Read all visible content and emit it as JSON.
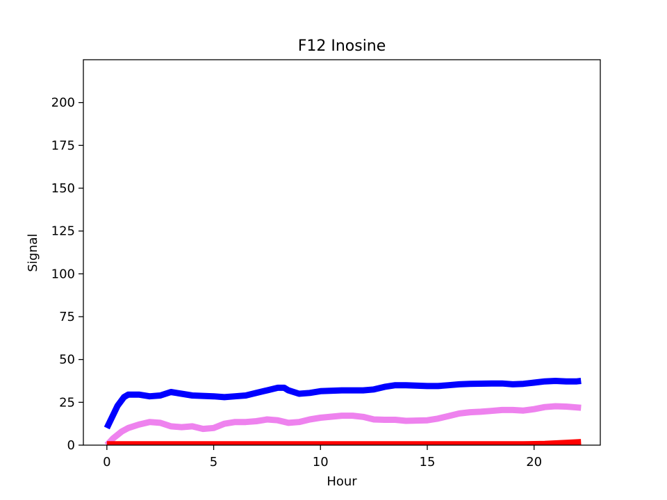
{
  "chart_data": {
    "type": "line",
    "title": "F12 Inosine",
    "xlabel": "Hour",
    "ylabel": "Signal",
    "xlim": [
      -1.1,
      23.1
    ],
    "ylim": [
      0,
      225
    ],
    "xticks": [
      0,
      5,
      10,
      15,
      20
    ],
    "yticks": [
      0,
      25,
      50,
      75,
      100,
      125,
      150,
      175,
      200
    ],
    "grid": false,
    "legend": "none",
    "series": [
      {
        "color": "#0000ff",
        "x": [
          0,
          0.5,
          0.8,
          1.0,
          1.5,
          2.0,
          2.5,
          3.0,
          3.5,
          4.0,
          5.0,
          5.5,
          6.0,
          6.5,
          7.0,
          7.5,
          8.0,
          8.3,
          8.5,
          9.0,
          9.5,
          10.0,
          11.0,
          12.0,
          12.5,
          13.0,
          13.5,
          14.0,
          15.0,
          15.5,
          16.0,
          16.5,
          17.0,
          18.0,
          18.5,
          19.0,
          19.5,
          20.0,
          20.5,
          21.0,
          21.5,
          22.0,
          22.2
        ],
        "y": [
          10,
          23,
          28,
          29.5,
          29.5,
          28.5,
          29,
          31,
          30,
          29,
          28.5,
          28,
          28.5,
          29,
          30.5,
          32,
          33.5,
          33.5,
          32,
          30,
          30.5,
          31.5,
          32,
          32,
          32.5,
          34,
          35,
          35,
          34.5,
          34.5,
          35,
          35.5,
          35.8,
          36,
          36,
          35.5,
          35.8,
          36.5,
          37.2,
          37.5,
          37.2,
          37.2,
          37.5
        ]
      },
      {
        "color": "#ee82ee",
        "x": [
          0,
          0.3,
          0.7,
          1.0,
          1.5,
          2.0,
          2.5,
          3.0,
          3.5,
          4.0,
          4.5,
          5.0,
          5.5,
          6.0,
          6.5,
          7.0,
          7.5,
          8.0,
          8.5,
          9.0,
          9.5,
          10.0,
          11.0,
          11.5,
          12.0,
          12.5,
          13.0,
          13.5,
          14.0,
          15.0,
          15.5,
          16.0,
          16.5,
          17.0,
          17.5,
          18.0,
          18.5,
          19.0,
          19.5,
          20.0,
          20.5,
          21.0,
          21.5,
          22.0,
          22.2
        ],
        "y": [
          0,
          4,
          8,
          10,
          12,
          13.5,
          13,
          11,
          10.5,
          11,
          9.5,
          10,
          12.5,
          13.5,
          13.5,
          14,
          15,
          14.5,
          13,
          13.5,
          15,
          16,
          17.2,
          17.2,
          16.5,
          15,
          14.8,
          14.8,
          14.2,
          14.5,
          15.5,
          17,
          18.5,
          19.2,
          19.5,
          20,
          20.5,
          20.5,
          20.2,
          21,
          22.2,
          22.7,
          22.5,
          22,
          21.8
        ]
      },
      {
        "color": "#ff0000",
        "x": [
          0,
          5,
          10,
          15,
          19.5,
          20.5,
          21.5,
          22.2
        ],
        "y": [
          0.5,
          0.5,
          0.5,
          0.5,
          0.5,
          0.7,
          1.3,
          1.8
        ]
      }
    ]
  }
}
